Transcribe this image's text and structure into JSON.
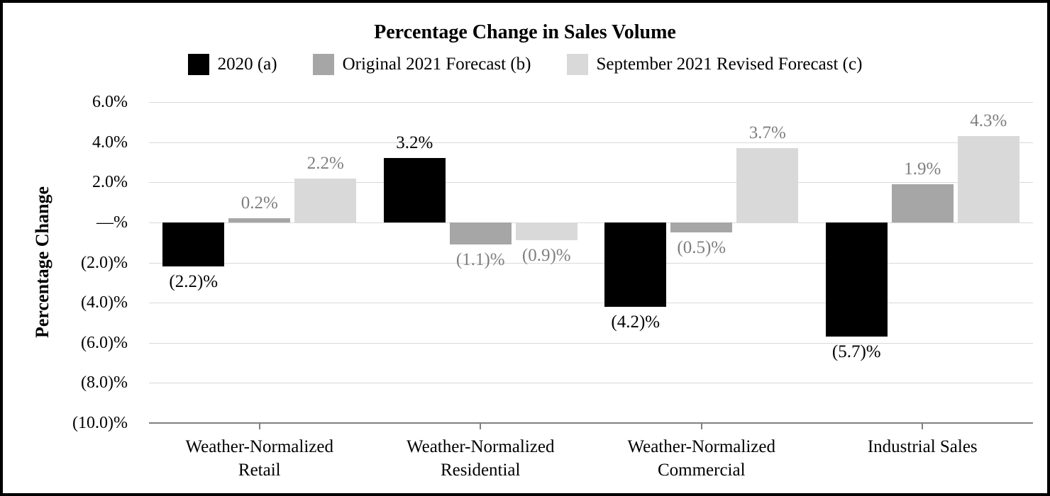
{
  "title": "Percentage Change in Sales Volume",
  "legend": [
    {
      "label": "2020 (a)",
      "color": "#000000"
    },
    {
      "label": "Original 2021 Forecast (b)",
      "color": "#a6a6a6"
    },
    {
      "label": "September 2021 Revised Forecast (c)",
      "color": "#d9d9d9"
    }
  ],
  "chart_data": {
    "type": "bar",
    "title": "Percentage Change in Sales Volume",
    "ylabel": "Percentage Change",
    "xlabel": "",
    "grid": true,
    "legend_position": "top",
    "categories": [
      [
        "Weather-Normalized",
        "Retail"
      ],
      [
        "Weather-Normalized",
        "Residential"
      ],
      [
        "Weather-Normalized",
        "Commercial"
      ],
      [
        "Industrial Sales"
      ]
    ],
    "series": [
      {
        "name": "2020 (a)",
        "color": "#000000",
        "label_color": "#000000",
        "values": [
          -2.2,
          3.2,
          -4.2,
          -5.7
        ],
        "labels": [
          "(2.2)%",
          "3.2%",
          "(4.2)%",
          "(5.7)%"
        ]
      },
      {
        "name": "Original 2021 Forecast (b)",
        "color": "#a6a6a6",
        "label_color": "#7f7f7f",
        "values": [
          0.2,
          -1.1,
          -0.5,
          1.9
        ],
        "labels": [
          "0.2%",
          "(1.1)%",
          "(0.5)%",
          "1.9%"
        ]
      },
      {
        "name": "September 2021 Revised Forecast (c)",
        "color": "#d9d9d9",
        "label_color": "#7f7f7f",
        "values": [
          2.2,
          -0.9,
          3.7,
          4.3
        ],
        "labels": [
          "2.2%",
          "(0.9)%",
          "3.7%",
          "4.3%"
        ]
      }
    ],
    "y_axis": {
      "min": -10,
      "max": 6,
      "ticks": [
        {
          "value": 6,
          "label": "6.0%"
        },
        {
          "value": 4,
          "label": "4.0%"
        },
        {
          "value": 2,
          "label": "2.0%"
        },
        {
          "value": 0,
          "label": "—%"
        },
        {
          "value": -2,
          "label": "(2.0)%"
        },
        {
          "value": -4,
          "label": "(4.0)%"
        },
        {
          "value": -6,
          "label": "(6.0)%"
        },
        {
          "value": -8,
          "label": "(8.0)%"
        },
        {
          "value": -10,
          "label": "(10.0)%"
        }
      ],
      "grid_color": "#d9d9d9",
      "axis_color": "#808080"
    }
  }
}
